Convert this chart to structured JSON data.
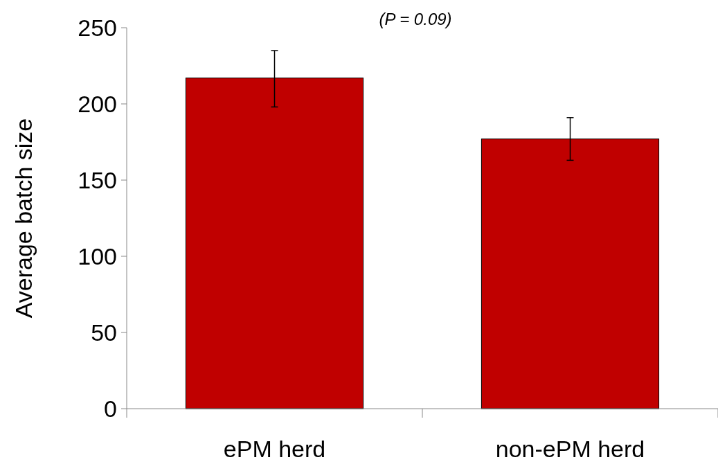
{
  "chart_data": {
    "type": "bar",
    "ylabel": "Average batch size",
    "annotations": [
      "(P = 0.09)"
    ],
    "categories": [
      "ePM herd",
      "non-ePM herd"
    ],
    "values": [
      217,
      177
    ],
    "color": "#c00000",
    "errors": [
      [
        198,
        235
      ],
      [
        163,
        191
      ]
    ],
    "ylim": [
      0,
      250
    ],
    "yticks": [
      0,
      50,
      100,
      150,
      200,
      250
    ],
    "grid": false
  }
}
